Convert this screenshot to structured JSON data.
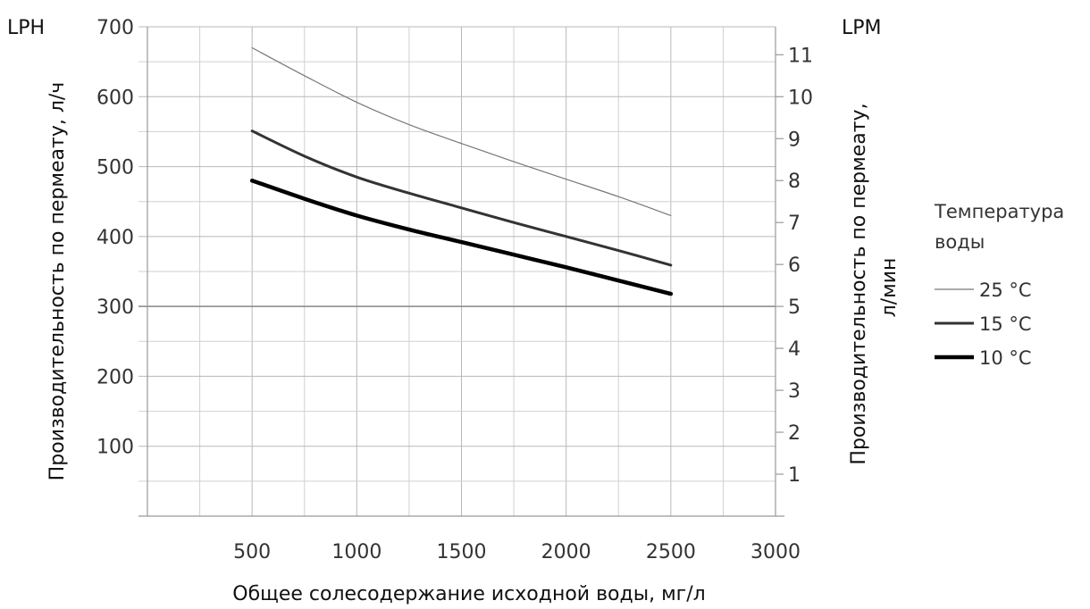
{
  "chart_data": {
    "type": "line",
    "left_unit": "LPH",
    "right_unit": "LPM",
    "xlabel": "Общее солесодержание исходной воды, мг/л",
    "ylabel_left": "Производительность по пермеату, л/ч",
    "ylabel_right_line1": "Производительность по пермеату,",
    "ylabel_right_line2": "л/мин",
    "xlim": [
      0,
      3000
    ],
    "x_ticks": [
      500,
      1000,
      1500,
      2000,
      2500,
      3000
    ],
    "ylim_left": [
      0,
      700
    ],
    "y_ticks_left": [
      100,
      200,
      300,
      400,
      500,
      600,
      700
    ],
    "ylim_right": [
      0,
      11.6667
    ],
    "y_ticks_right": [
      1,
      2,
      3,
      4,
      5,
      6,
      7,
      8,
      9,
      10,
      11
    ],
    "grid": true,
    "legend_title_line1": "Температура",
    "legend_title_line2": "воды",
    "legend_position": "right",
    "series": [
      {
        "name": "25 °C",
        "color": "#777777",
        "width": 1.2,
        "x": [
          500,
          750,
          1000,
          1250,
          1500,
          1750,
          2000,
          2250,
          2500
        ],
        "y": [
          670,
          630,
          592,
          560,
          533,
          507,
          482,
          457,
          430
        ]
      },
      {
        "name": "15 °C",
        "color": "#333333",
        "width": 3,
        "x": [
          500,
          750,
          1000,
          1250,
          1500,
          1750,
          2000,
          2250,
          2500
        ],
        "y": [
          551,
          515,
          485,
          462,
          441,
          420,
          400,
          380,
          359
        ]
      },
      {
        "name": "10 °C",
        "color": "#000000",
        "width": 4.5,
        "x": [
          500,
          750,
          1000,
          1250,
          1500,
          1750,
          2000,
          2250,
          2500
        ],
        "y": [
          480,
          454,
          430,
          410,
          392,
          374,
          356,
          337,
          318
        ]
      }
    ]
  }
}
